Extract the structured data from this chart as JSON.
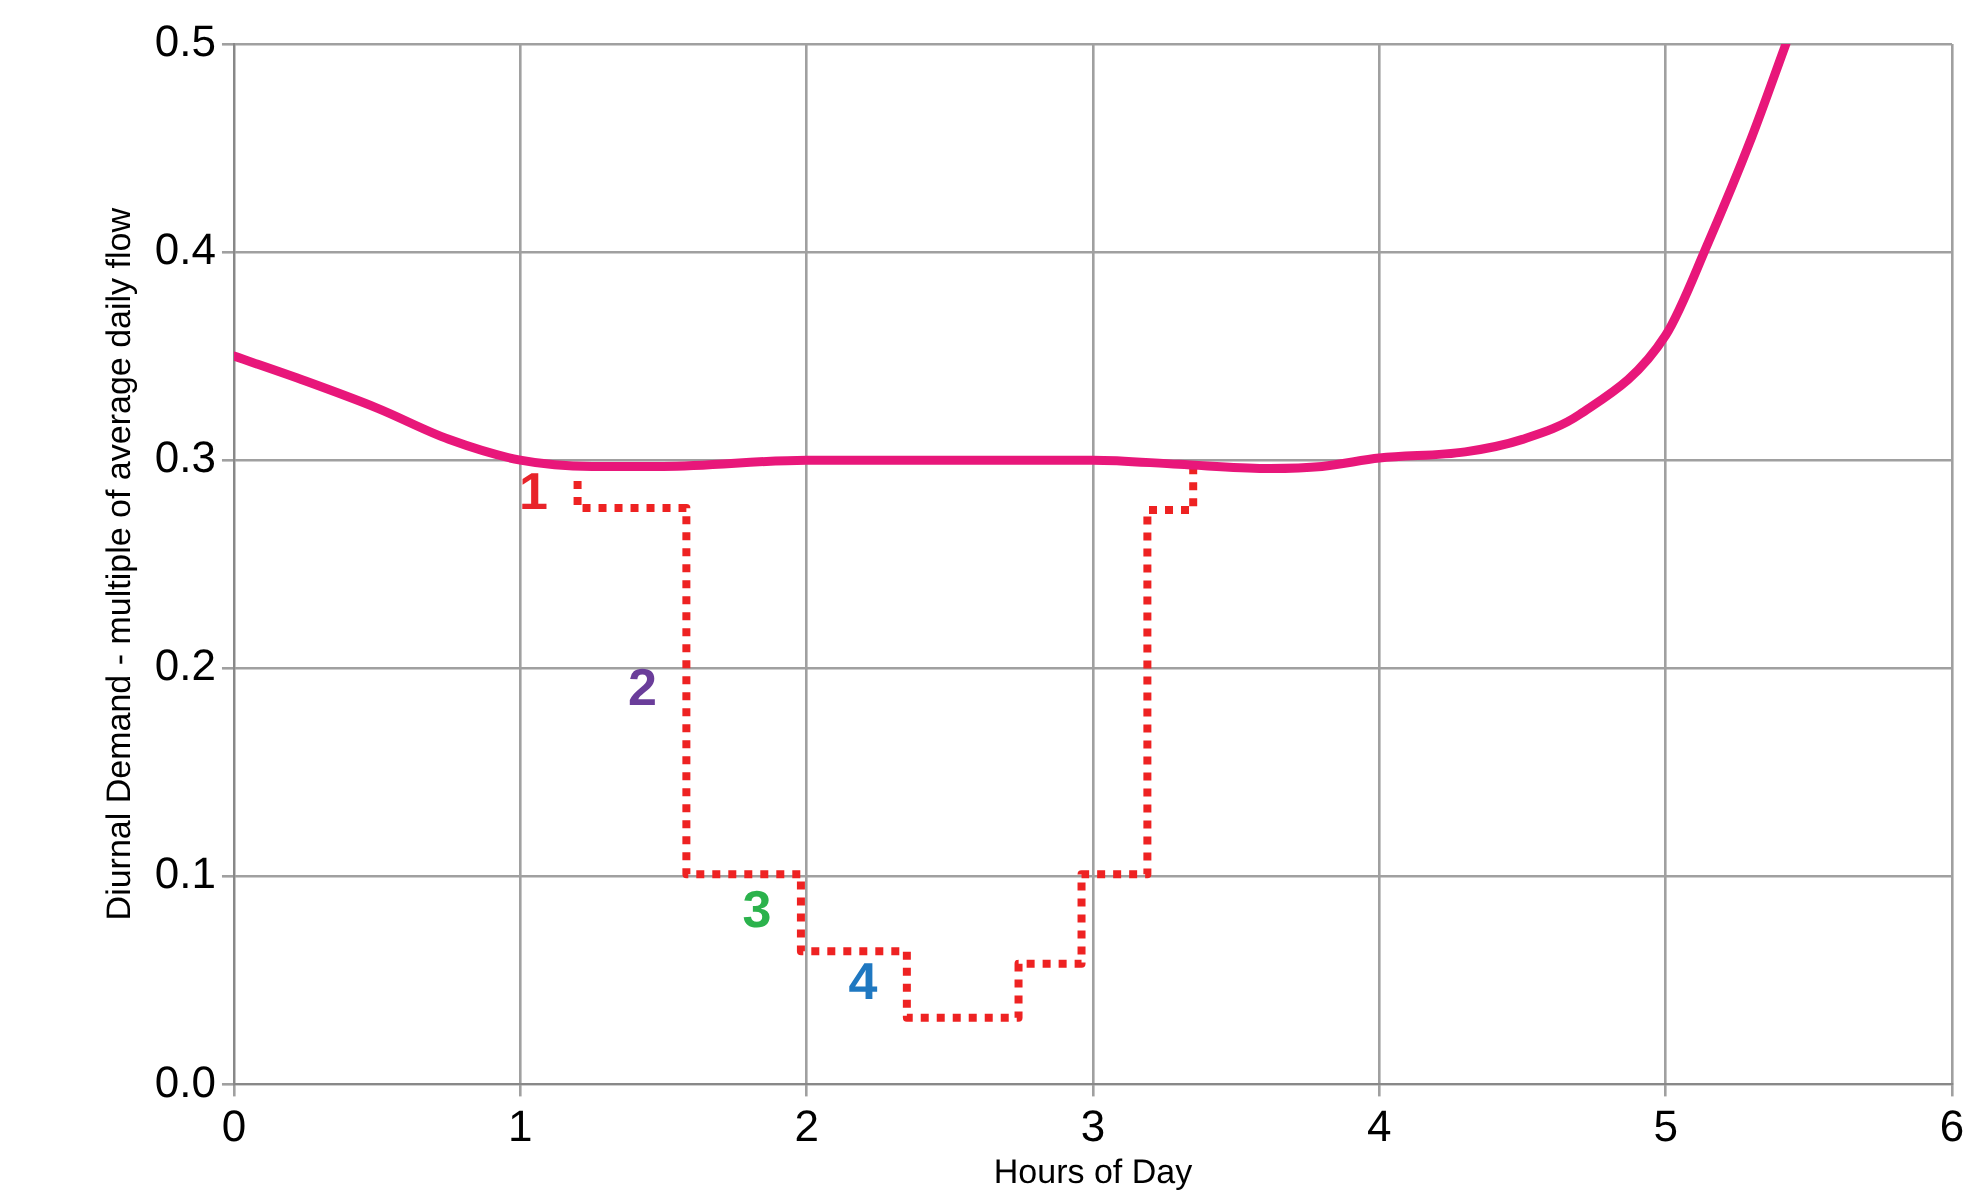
{
  "chart_data": {
    "type": "line",
    "xlabel": "Hours of Day",
    "ylabel": "Diurnal Demand - multiple of average daily flow",
    "xlim": [
      0,
      6
    ],
    "xticks": [
      0,
      1,
      2,
      3,
      4,
      5,
      6
    ],
    "ylim": [
      0,
      0.5
    ],
    "yticks": [
      {
        "value": 0,
        "label": "0.0"
      },
      0.1,
      0.2,
      0.3,
      0.4,
      0.5
    ],
    "grid": true,
    "marker": "none",
    "series": [
      {
        "color": "#e8177a",
        "line_style": "solid",
        "x": [
          0,
          0.25,
          0.5,
          0.75,
          1,
          1.25,
          1.5,
          2,
          2.5,
          3,
          3.3,
          3.6,
          3.8,
          4,
          4.3,
          4.5,
          4.7,
          5,
          5.15,
          5.3,
          5.42
        ],
        "values": [
          0.35,
          0.338,
          0.325,
          0.31,
          0.3,
          0.297,
          0.297,
          0.3,
          0.3,
          0.3,
          0.298,
          0.296,
          0.297,
          0.301,
          0.304,
          0.31,
          0.322,
          0.36,
          0.405,
          0.455,
          0.5
        ]
      },
      {
        "color": "#ee2222",
        "line_style": "dotted",
        "x": [
          1.2,
          1.2,
          1.58,
          1.58,
          1.98,
          1.98,
          2.35,
          2.35,
          2.74,
          2.74,
          2.96,
          2.96,
          3.19,
          3.19,
          3.35,
          3.35
        ],
        "values": [
          0.29,
          0.277,
          0.277,
          0.101,
          0.101,
          0.064,
          0.064,
          0.032,
          0.032,
          0.058,
          0.058,
          0.101,
          0.101,
          0.276,
          0.276,
          0.298
        ]
      }
    ],
    "annotations": [
      "1",
      "2",
      "3",
      "4"
    ]
  }
}
